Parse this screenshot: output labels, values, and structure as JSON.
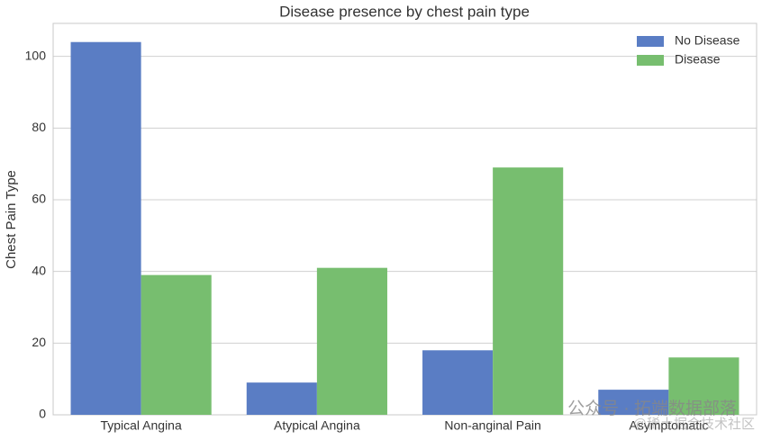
{
  "chart_data": {
    "type": "bar",
    "title": "Disease presence by chest pain type",
    "y_label": "Chest Pain Type",
    "categories": [
      "Typical Angina",
      "Atypical Angina",
      "Non-anginal Pain",
      "Asymptomatic"
    ],
    "series": [
      {
        "name": "No Disease",
        "color": "#5a7dc4",
        "values": [
          104,
          9,
          18,
          7
        ]
      },
      {
        "name": "Disease",
        "color": "#77be6f",
        "values": [
          39,
          41,
          69,
          16
        ]
      }
    ],
    "ylim": [
      0,
      109.2
    ],
    "yticks": [
      0,
      20,
      40,
      60,
      80,
      100
    ],
    "grid": true,
    "legend": "upper right",
    "watermark": [
      "公众号 · 拓端数据部落",
      "@稀土掘金技术社区"
    ]
  }
}
